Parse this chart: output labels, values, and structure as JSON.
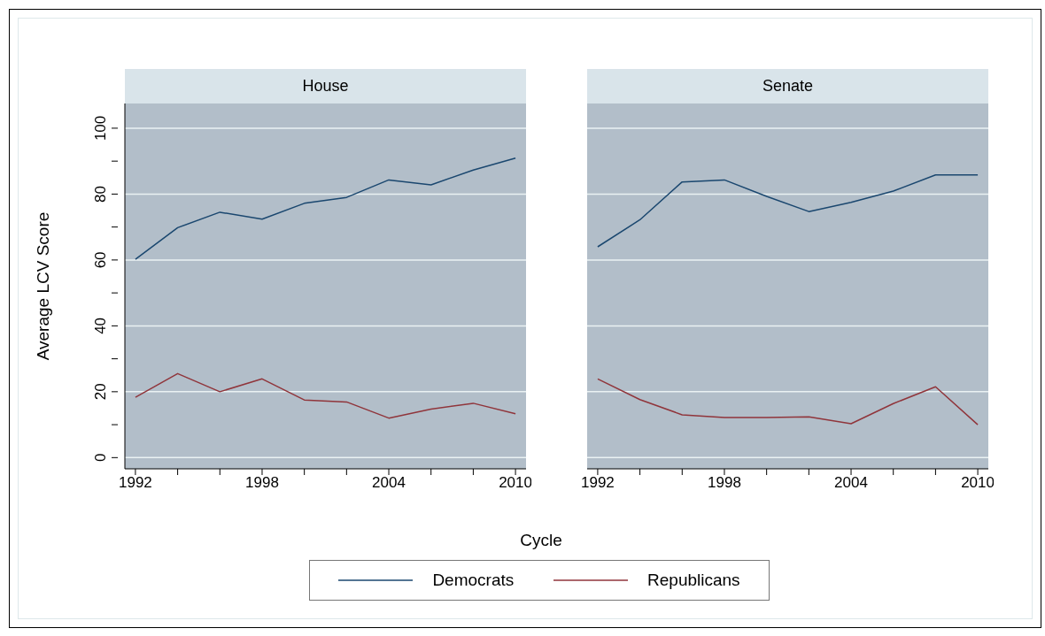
{
  "chart_data": [
    {
      "type": "line",
      "title": "House",
      "ylabel": "Average LCV Score",
      "xlabel": "Cycle",
      "legend": "bottom",
      "grid": "y",
      "x": [
        1992,
        1994,
        1996,
        1998,
        2000,
        2002,
        2004,
        2006,
        2008,
        2010
      ],
      "xlim": [
        1991.5,
        2010.5
      ],
      "xticks": [
        1992,
        {
          "value": 1994,
          "label": null
        },
        {
          "value": 1996,
          "label": null
        },
        1998,
        {
          "value": 2000,
          "label": null
        },
        {
          "value": 2002,
          "label": null
        },
        2004,
        {
          "value": 2006,
          "label": null
        },
        {
          "value": 2008,
          "label": null
        },
        2010
      ],
      "ylim": [
        -3.4,
        107.5
      ],
      "yticks": [
        0,
        {
          "value": 10,
          "label": null
        },
        20,
        {
          "value": 30,
          "label": null
        },
        40,
        {
          "value": 50,
          "label": null
        },
        60,
        {
          "value": 70,
          "label": null
        },
        80,
        {
          "value": 90,
          "label": null
        },
        100
      ],
      "series": [
        {
          "name": "Democrats",
          "color": "#1a476f",
          "values": [
            60.2,
            69.8,
            74.5,
            72.4,
            77.2,
            79.0,
            84.3,
            82.8,
            87.3,
            90.9
          ]
        },
        {
          "name": "Republicans",
          "color": "#90353b",
          "values": [
            18.3,
            25.5,
            20.0,
            23.9,
            17.5,
            16.9,
            12.0,
            14.7,
            16.5,
            13.3
          ]
        }
      ]
    },
    {
      "type": "line",
      "title": "Senate",
      "grid": "y",
      "tick_labels": "x",
      "x": [
        1992,
        1994,
        1996,
        1998,
        2000,
        2002,
        2004,
        2006,
        2008,
        2010
      ],
      "xlim": [
        1991.5,
        2010.5
      ],
      "xticks": [
        1992,
        {
          "value": 1994,
          "label": null
        },
        {
          "value": 1996,
          "label": null
        },
        1998,
        {
          "value": 2000,
          "label": null
        },
        {
          "value": 2002,
          "label": null
        },
        2004,
        {
          "value": 2006,
          "label": null
        },
        {
          "value": 2008,
          "label": null
        },
        2010
      ],
      "ylim": [
        -3.4,
        107.5
      ],
      "yticks": [
        0,
        20,
        40,
        60,
        80,
        100
      ],
      "series": [
        {
          "color": "#1a476f",
          "values": [
            64.0,
            72.2,
            83.7,
            84.3,
            79.3,
            74.7,
            77.5,
            80.9,
            85.8,
            85.8
          ]
        },
        {
          "color": "#90353b",
          "values": [
            23.9,
            17.6,
            13.0,
            12.2,
            12.2,
            12.4,
            10.3,
            16.4,
            21.5,
            10.0
          ]
        }
      ]
    }
  ]
}
